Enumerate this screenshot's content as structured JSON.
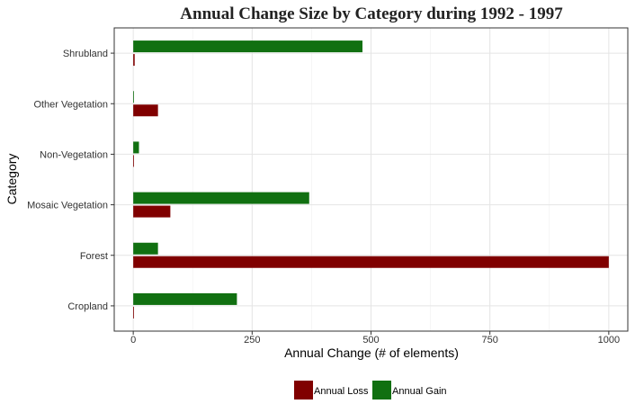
{
  "chart_data": {
    "type": "bar",
    "orientation": "horizontal",
    "title": "Annual Change Size by Category during  1992 - 1997",
    "xlabel": "Annual Change (# of elements)",
    "ylabel": "Category",
    "categories": [
      "Cropland",
      "Forest",
      "Mosaic Vegetation",
      "Non-Vegetation",
      "Other Vegetation",
      "Shrubland"
    ],
    "series": [
      {
        "name": "Annual Loss",
        "color": "#800000",
        "values": [
          0,
          1000,
          78,
          0,
          52,
          3
        ]
      },
      {
        "name": "Annual Gain",
        "color": "#117011",
        "values": [
          218,
          52,
          370,
          12,
          0,
          482
        ]
      }
    ],
    "xlim": [
      -40,
      1040
    ],
    "xticks": [
      0,
      250,
      500,
      750,
      1000
    ],
    "xtick_labels": [
      "0",
      "250",
      "500",
      "750",
      "1000"
    ],
    "grid": true,
    "legend_position": "bottom"
  }
}
